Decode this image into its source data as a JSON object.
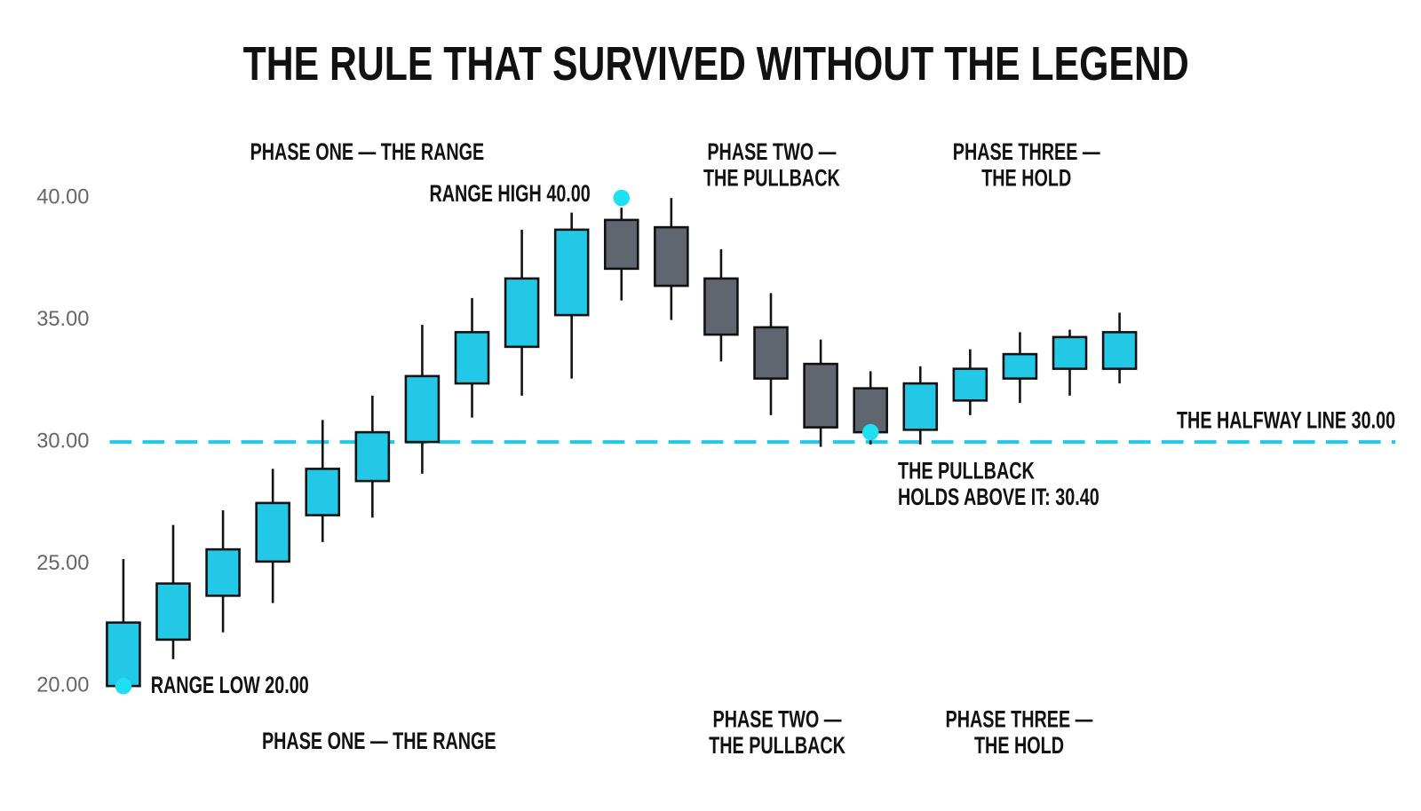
{
  "chart_data": {
    "type": "candlestick",
    "title": "THE RULE THAT SURVIVED WITHOUT THE LEGEND",
    "open": [
      20.0,
      21.9,
      23.7,
      25.1,
      27.0,
      28.4,
      30.0,
      32.4,
      33.9,
      35.2,
      39.1,
      38.8,
      36.7,
      34.7,
      33.2,
      32.2,
      30.5,
      31.7,
      32.6,
      33.0,
      33.0
    ],
    "high": [
      25.2,
      26.6,
      27.2,
      28.9,
      30.9,
      31.9,
      34.8,
      35.9,
      38.7,
      39.4,
      39.6,
      40.0,
      37.9,
      36.1,
      34.2,
      32.9,
      33.1,
      33.8,
      34.5,
      34.6,
      35.3
    ],
    "low": [
      20.0,
      21.1,
      22.2,
      23.4,
      25.9,
      26.9,
      28.7,
      31.0,
      31.9,
      32.6,
      35.8,
      35.0,
      33.3,
      31.1,
      29.8,
      29.9,
      29.9,
      31.1,
      31.6,
      31.9,
      32.4
    ],
    "close": [
      22.6,
      24.2,
      25.6,
      27.5,
      28.9,
      30.4,
      32.7,
      34.5,
      36.7,
      38.7,
      37.1,
      36.4,
      34.4,
      32.6,
      30.6,
      30.4,
      32.4,
      33.0,
      33.6,
      34.3,
      34.5
    ],
    "up_color": "#22c8e6",
    "down_color": "#5f6670",
    "ylim": [
      20,
      40
    ],
    "yticks": [
      {
        "value": 20,
        "label": "20.00"
      },
      {
        "value": 25,
        "label": "25.00"
      },
      {
        "value": 30,
        "label": "30.00"
      },
      {
        "value": 35,
        "label": "35.00"
      },
      {
        "value": 40,
        "label": "40.00"
      }
    ],
    "hline": {
      "value": 30,
      "label": "THE HALFWAY LINE 30.00",
      "color": "#22c8e6"
    },
    "annotations": [
      {
        "text": [
          "RANGE HIGH 40.00"
        ],
        "x": 10,
        "y": 40
      },
      {
        "text": [
          "RANGE LOW 20.00"
        ],
        "x": 0,
        "y": 20
      },
      {
        "text": [
          "THE PULLBACK",
          "HOLDS ABOVE IT: 30.40"
        ],
        "x": 15,
        "y": 30.4
      }
    ],
    "phase_labels_top": [
      [
        "PHASE ONE — THE RANGE"
      ],
      [
        "PHASE TWO —",
        "THE PULLBACK"
      ],
      [
        "PHASE THREE —",
        "THE HOLD"
      ]
    ],
    "phase_labels_bottom": [
      [
        "PHASE ONE — THE RANGE"
      ],
      [
        "PHASE TWO —",
        "THE PULLBACK"
      ],
      [
        "PHASE THREE —",
        "THE HOLD"
      ]
    ]
  }
}
